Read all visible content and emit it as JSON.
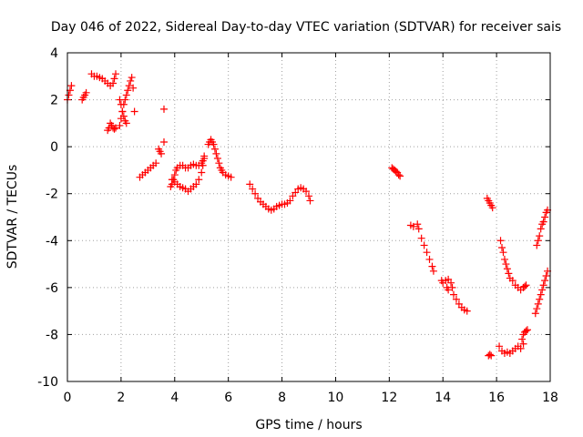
{
  "chart_data": {
    "type": "scatter",
    "title": "Day 046 of 2022, Sidereal Day-to-day VTEC variation (SDTVAR) for receiver sais",
    "xlabel": "GPS time / hours",
    "ylabel": "SDTVAR / TECUs",
    "xlim": [
      0,
      18
    ],
    "ylim": [
      -10,
      4
    ],
    "xticks": [
      0,
      2,
      4,
      6,
      8,
      10,
      12,
      14,
      16,
      18
    ],
    "yticks": [
      -10,
      -8,
      -6,
      -4,
      -2,
      0,
      2,
      4
    ],
    "xtick_labels": [
      "0",
      "2",
      "4",
      "6",
      "8",
      "10",
      "12",
      "14",
      "16",
      "18"
    ],
    "ytick_labels": [
      "-10",
      "-8",
      "-6",
      "-4",
      "-2",
      "0",
      "2",
      "4"
    ],
    "grid": true,
    "marker": "+",
    "color": "#ff0000",
    "series": [
      {
        "name": "seg01",
        "x": [
          0.0,
          0.05,
          0.1,
          0.15
        ],
        "y": [
          2.0,
          2.2,
          2.4,
          2.6
        ]
      },
      {
        "name": "seg02",
        "x": [
          0.55,
          0.6,
          0.65,
          0.7
        ],
        "y": [
          2.0,
          2.1,
          2.2,
          2.3
        ]
      },
      {
        "name": "seg03",
        "x": [
          0.9,
          1.0,
          1.1,
          1.2,
          1.3,
          1.4,
          1.5,
          1.6,
          1.7,
          1.75,
          1.8
        ],
        "y": [
          3.1,
          3.0,
          3.0,
          2.95,
          2.9,
          2.8,
          2.7,
          2.6,
          2.7,
          2.9,
          3.1
        ]
      },
      {
        "name": "seg04",
        "x": [
          1.5,
          1.55,
          1.6,
          1.65,
          1.7,
          1.75,
          1.8
        ],
        "y": [
          0.7,
          0.8,
          1.0,
          0.9,
          0.8,
          0.75,
          0.8
        ]
      },
      {
        "name": "seg05",
        "x": [
          1.95,
          2.0,
          2.05,
          2.1,
          2.15,
          2.2,
          2.25,
          2.3,
          2.35,
          2.4,
          2.45,
          2.5
        ],
        "y": [
          0.9,
          1.2,
          1.5,
          1.8,
          2.0,
          2.2,
          2.4,
          2.6,
          2.8,
          2.95,
          2.5,
          1.5
        ]
      },
      {
        "name": "seg06",
        "x": [
          1.95,
          2.0,
          2.05,
          2.1,
          2.15,
          2.2
        ],
        "y": [
          2.0,
          1.8,
          1.5,
          1.3,
          1.1,
          1.0
        ]
      },
      {
        "name": "seg07",
        "x": [
          2.7,
          2.8,
          2.9,
          3.0,
          3.1,
          3.2,
          3.3
        ],
        "y": [
          -1.3,
          -1.2,
          -1.1,
          -1.0,
          -0.9,
          -0.8,
          -0.7
        ]
      },
      {
        "name": "seg08",
        "x": [
          3.4,
          3.45,
          3.5
        ],
        "y": [
          -0.1,
          -0.2,
          -0.3
        ]
      },
      {
        "name": "seg09",
        "x": [
          3.6
        ],
        "y": [
          1.6
        ]
      },
      {
        "name": "seg10",
        "x": [
          3.6
        ],
        "y": [
          0.2
        ]
      },
      {
        "name": "seg11",
        "x": [
          3.85,
          3.9,
          3.95,
          4.0,
          4.05,
          4.1,
          4.2,
          4.3,
          4.4,
          4.5,
          4.6,
          4.7,
          4.8,
          4.9,
          5.0,
          5.05,
          5.1
        ],
        "y": [
          -1.7,
          -1.6,
          -1.4,
          -1.2,
          -1.0,
          -0.9,
          -0.8,
          -0.8,
          -0.9,
          -0.9,
          -0.8,
          -0.75,
          -0.8,
          -0.8,
          -0.7,
          -0.6,
          -0.4
        ]
      },
      {
        "name": "seg12",
        "x": [
          3.9,
          4.0,
          4.1,
          4.2,
          4.3,
          4.4,
          4.5,
          4.6,
          4.7,
          4.8,
          4.9,
          5.0,
          5.05,
          5.1
        ],
        "y": [
          -1.4,
          -1.5,
          -1.6,
          -1.7,
          -1.75,
          -1.8,
          -1.9,
          -1.8,
          -1.7,
          -1.6,
          -1.4,
          -1.1,
          -0.8,
          -0.5
        ]
      },
      {
        "name": "seg13",
        "x": [
          5.25,
          5.3,
          5.35,
          5.4,
          5.45,
          5.5,
          5.55,
          5.6,
          5.65,
          5.7,
          5.75,
          5.8,
          5.9,
          6.0,
          6.1
        ],
        "y": [
          0.1,
          0.2,
          0.3,
          0.2,
          0.1,
          -0.1,
          -0.3,
          -0.5,
          -0.7,
          -0.9,
          -1.0,
          -1.1,
          -1.2,
          -1.25,
          -1.3
        ]
      },
      {
        "name": "seg14",
        "x": [
          6.8,
          6.9,
          7.0,
          7.1,
          7.2,
          7.3,
          7.4,
          7.5,
          7.6,
          7.7,
          7.8,
          7.9,
          8.0,
          8.1,
          8.2,
          8.3,
          8.4,
          8.5,
          8.6,
          8.7,
          8.8,
          8.9,
          9.0,
          9.05
        ],
        "y": [
          -1.6,
          -1.8,
          -2.0,
          -2.2,
          -2.35,
          -2.45,
          -2.55,
          -2.65,
          -2.7,
          -2.65,
          -2.55,
          -2.5,
          -2.45,
          -2.45,
          -2.4,
          -2.3,
          -2.1,
          -1.95,
          -1.8,
          -1.75,
          -1.8,
          -1.9,
          -2.1,
          -2.3
        ]
      },
      {
        "name": "seg15",
        "x": [
          12.1,
          12.15,
          12.2,
          12.25,
          12.3,
          12.35,
          12.4
        ],
        "y": [
          -0.9,
          -0.95,
          -1.0,
          -1.05,
          -1.1,
          -1.2,
          -1.25
        ]
      },
      {
        "name": "seg16",
        "x": [
          12.8,
          12.9
        ],
        "y": [
          -3.35,
          -3.4
        ]
      },
      {
        "name": "seg17",
        "x": [
          13.05,
          13.1,
          13.2,
          13.3,
          13.4,
          13.5,
          13.6,
          13.65
        ],
        "y": [
          -3.3,
          -3.5,
          -3.9,
          -4.2,
          -4.5,
          -4.8,
          -5.1,
          -5.3
        ]
      },
      {
        "name": "seg18",
        "x": [
          13.95,
          14.0,
          14.1,
          14.2,
          14.3,
          14.35,
          14.4,
          14.5,
          14.6,
          14.7,
          14.8,
          14.9
        ],
        "y": [
          -5.7,
          -5.8,
          -5.7,
          -5.65,
          -5.8,
          -6.0,
          -6.3,
          -6.5,
          -6.7,
          -6.85,
          -6.95,
          -7.0
        ]
      },
      {
        "name": "seg19",
        "x": [
          14.15,
          14.2
        ],
        "y": [
          -6.0,
          -6.1
        ]
      },
      {
        "name": "seg20",
        "x": [
          15.65,
          15.7,
          15.75,
          15.8,
          15.85
        ],
        "y": [
          -2.2,
          -2.3,
          -2.4,
          -2.5,
          -2.6
        ]
      },
      {
        "name": "seg21",
        "x": [
          15.7,
          15.75,
          15.8
        ],
        "y": [
          -8.9,
          -8.85,
          -8.9
        ]
      },
      {
        "name": "seg22",
        "x": [
          16.1,
          16.2,
          16.3,
          16.4,
          16.5,
          16.6,
          16.7,
          16.8,
          16.9,
          17.0
        ],
        "y": [
          -8.5,
          -8.7,
          -8.8,
          -8.75,
          -8.8,
          -8.7,
          -8.6,
          -8.5,
          -8.6,
          -8.4
        ]
      },
      {
        "name": "seg23",
        "x": [
          16.15,
          16.2,
          16.25,
          16.3,
          16.35,
          16.4,
          16.45,
          16.5,
          16.6,
          16.7,
          16.8,
          16.9,
          17.0,
          17.05,
          17.1
        ],
        "y": [
          -4.0,
          -4.3,
          -4.5,
          -4.8,
          -5.0,
          -5.2,
          -5.4,
          -5.6,
          -5.7,
          -5.9,
          -6.0,
          -6.1,
          -6.0,
          -5.95,
          -5.9
        ]
      },
      {
        "name": "seg24",
        "x": [
          16.95,
          17.0,
          17.05,
          17.1,
          17.15
        ],
        "y": [
          -8.2,
          -8.0,
          -7.9,
          -7.85,
          -7.8
        ]
      },
      {
        "name": "seg25",
        "x": [
          17.5,
          17.55,
          17.6,
          17.65,
          17.7,
          17.75,
          17.8,
          17.85,
          17.9
        ],
        "y": [
          -4.2,
          -4.0,
          -3.8,
          -3.5,
          -3.3,
          -3.2,
          -3.0,
          -2.8,
          -2.7
        ]
      },
      {
        "name": "seg26",
        "x": [
          17.45,
          17.5,
          17.55,
          17.6,
          17.65,
          17.7,
          17.75,
          17.8,
          17.85,
          17.9
        ],
        "y": [
          -7.1,
          -6.9,
          -6.7,
          -6.5,
          -6.3,
          -6.1,
          -5.9,
          -5.7,
          -5.5,
          -5.3
        ]
      }
    ]
  }
}
